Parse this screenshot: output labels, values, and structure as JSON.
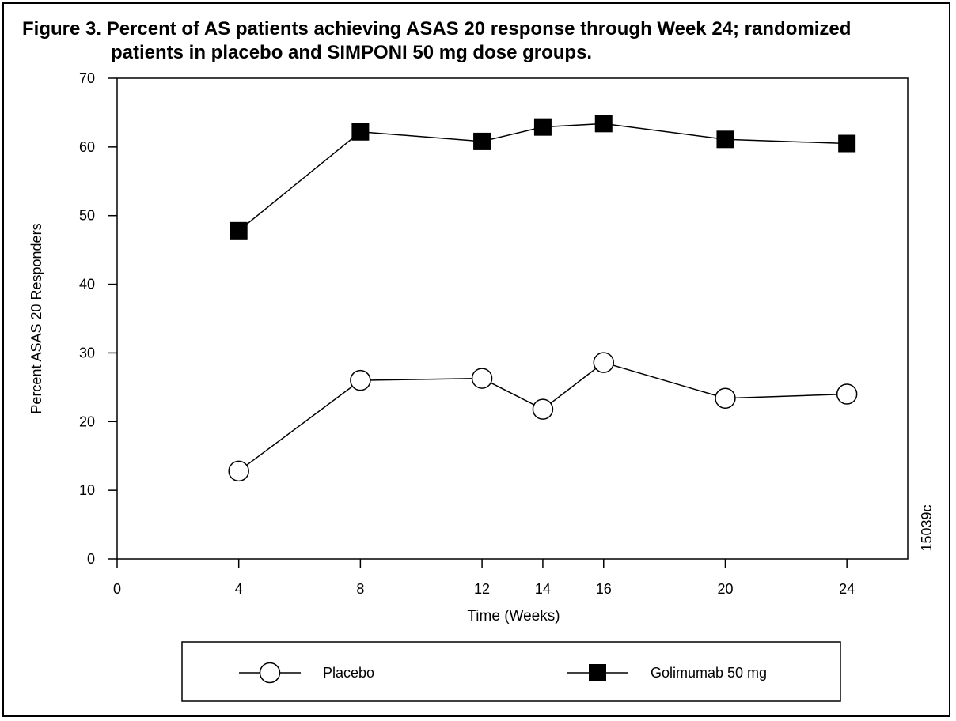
{
  "title": {
    "line1": "Figure 3. Percent of AS patients achieving ASAS 20 response through Week 24; randomized",
    "line2": "patients in placebo and SIMPONI 50 mg dose groups."
  },
  "figure_id": "15039c",
  "chart_data": {
    "type": "line",
    "title": "Figure 3. Percent of AS patients achieving ASAS 20 response through Week 24; randomized patients in placebo and SIMPONI 50 mg dose groups.",
    "xlabel": "Time (Weeks)",
    "ylabel": "Percent ASAS 20 Responders",
    "xlim": [
      0,
      26
    ],
    "ylim": [
      0,
      70
    ],
    "x_ticks": [
      0,
      4,
      8,
      12,
      14,
      16,
      20,
      24
    ],
    "y_ticks": [
      0,
      10,
      20,
      30,
      40,
      50,
      60,
      70
    ],
    "grid": false,
    "legend_position": "bottom",
    "series": [
      {
        "name": "Placebo",
        "marker": "open-circle",
        "x": [
          4,
          8,
          12,
          14,
          16,
          20,
          24
        ],
        "y": [
          12.8,
          26.0,
          26.3,
          21.8,
          28.6,
          23.4,
          24.0
        ]
      },
      {
        "name": "Golimumab 50 mg",
        "marker": "filled-square",
        "x": [
          4,
          8,
          12,
          14,
          16,
          20,
          24
        ],
        "y": [
          47.8,
          62.2,
          60.8,
          62.9,
          63.4,
          61.1,
          60.5
        ]
      }
    ]
  }
}
